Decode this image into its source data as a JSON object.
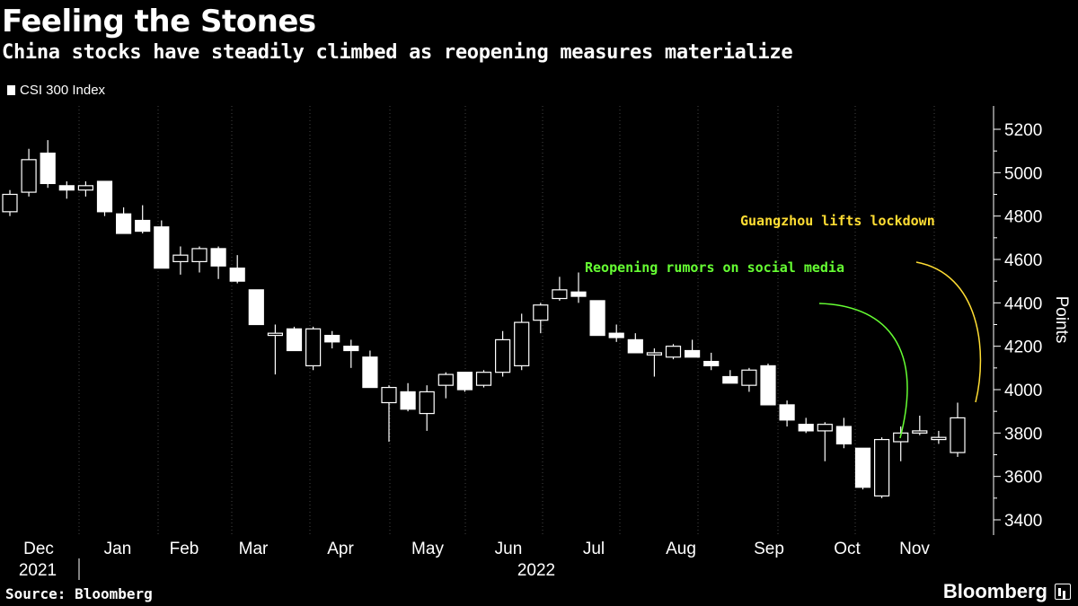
{
  "header": {
    "title": "Feeling the Stones",
    "subtitle": "China stocks have steadily climbed as reopening measures materialize"
  },
  "footer": {
    "source": "Source: Bloomberg",
    "brand": "Bloomberg"
  },
  "colors": {
    "background": "#000000",
    "candle": "#ffffff",
    "grid": "#444444",
    "annotation_green": "#66ff33",
    "annotation_yellow": "#ffdd33"
  },
  "chart_data": {
    "type": "candlestick",
    "title": "Feeling the Stones",
    "subtitle": "China stocks have steadily climbed as reopening measures materialize",
    "legend": [
      "CSI 300 Index"
    ],
    "legend_position": "top-left",
    "ylabel": "Points",
    "ylim": [
      3400,
      5200
    ],
    "yticks": [
      3400,
      3600,
      3800,
      4000,
      4200,
      4400,
      4600,
      4800,
      5000,
      5200
    ],
    "y_axis_side": "right",
    "grid": "vertical dotted",
    "x_month_labels": [
      "Dec",
      "Jan",
      "Feb",
      "Mar",
      "Apr",
      "May",
      "Jun",
      "Jul",
      "Aug",
      "Sep",
      "Oct",
      "Nov"
    ],
    "x_year_labels": [
      "2021",
      "2022"
    ],
    "series": [
      {
        "name": "CSI 300 Index",
        "ohlc": [
          {
            "week": "2021-11-29",
            "open": 4820,
            "high": 4920,
            "low": 4800,
            "close": 4900
          },
          {
            "week": "2021-12-06",
            "open": 4910,
            "high": 5110,
            "low": 4890,
            "close": 5060
          },
          {
            "week": "2021-12-13",
            "open": 5090,
            "high": 5150,
            "low": 4930,
            "close": 4950
          },
          {
            "week": "2021-12-20",
            "open": 4940,
            "high": 4960,
            "low": 4880,
            "close": 4920
          },
          {
            "week": "2021-12-27",
            "open": 4920,
            "high": 4960,
            "low": 4890,
            "close": 4940
          },
          {
            "week": "2022-01-03",
            "open": 4960,
            "high": 4960,
            "low": 4800,
            "close": 4820
          },
          {
            "week": "2022-01-10",
            "open": 4810,
            "high": 4840,
            "low": 4720,
            "close": 4720
          },
          {
            "week": "2022-01-17",
            "open": 4780,
            "high": 4850,
            "low": 4720,
            "close": 4730
          },
          {
            "week": "2022-01-24",
            "open": 4750,
            "high": 4780,
            "low": 4560,
            "close": 4560
          },
          {
            "week": "2022-02-07",
            "open": 4590,
            "high": 4660,
            "low": 4530,
            "close": 4620
          },
          {
            "week": "2022-02-14",
            "open": 4590,
            "high": 4660,
            "low": 4540,
            "close": 4650
          },
          {
            "week": "2022-02-21",
            "open": 4650,
            "high": 4660,
            "low": 4510,
            "close": 4570
          },
          {
            "week": "2022-02-28",
            "open": 4560,
            "high": 4620,
            "low": 4490,
            "close": 4500
          },
          {
            "week": "2022-03-07",
            "open": 4460,
            "high": 4460,
            "low": 4300,
            "close": 4300
          },
          {
            "week": "2022-03-14",
            "open": 4250,
            "high": 4300,
            "low": 4070,
            "close": 4260
          },
          {
            "week": "2022-03-21",
            "open": 4280,
            "high": 4290,
            "low": 4180,
            "close": 4180
          },
          {
            "week": "2022-03-28",
            "open": 4110,
            "high": 4290,
            "low": 4090,
            "close": 4280
          },
          {
            "week": "2022-04-04",
            "open": 4250,
            "high": 4270,
            "low": 4190,
            "close": 4220
          },
          {
            "week": "2022-04-11",
            "open": 4200,
            "high": 4230,
            "low": 4100,
            "close": 4180
          },
          {
            "week": "2022-04-18",
            "open": 4150,
            "high": 4180,
            "low": 4010,
            "close": 4010
          },
          {
            "week": "2022-04-25",
            "open": 3940,
            "high": 4020,
            "low": 3760,
            "close": 4010
          },
          {
            "week": "2022-05-02",
            "open": 3990,
            "high": 4030,
            "low": 3900,
            "close": 3910
          },
          {
            "week": "2022-05-09",
            "open": 3890,
            "high": 4020,
            "low": 3810,
            "close": 3990
          },
          {
            "week": "2022-05-16",
            "open": 4020,
            "high": 4080,
            "low": 3960,
            "close": 4070
          },
          {
            "week": "2022-05-23",
            "open": 4080,
            "high": 4080,
            "low": 3990,
            "close": 4000
          },
          {
            "week": "2022-05-30",
            "open": 4020,
            "high": 4090,
            "low": 4010,
            "close": 4080
          },
          {
            "week": "2022-06-06",
            "open": 4080,
            "high": 4270,
            "low": 4060,
            "close": 4230
          },
          {
            "week": "2022-06-13",
            "open": 4110,
            "high": 4350,
            "low": 4090,
            "close": 4310
          },
          {
            "week": "2022-06-20",
            "open": 4320,
            "high": 4400,
            "low": 4260,
            "close": 4390
          },
          {
            "week": "2022-06-27",
            "open": 4420,
            "high": 4520,
            "low": 4410,
            "close": 4460
          },
          {
            "week": "2022-07-04",
            "open": 4450,
            "high": 4540,
            "low": 4400,
            "close": 4430
          },
          {
            "week": "2022-07-11",
            "open": 4410,
            "high": 4410,
            "low": 4250,
            "close": 4250
          },
          {
            "week": "2022-07-18",
            "open": 4260,
            "high": 4300,
            "low": 4220,
            "close": 4240
          },
          {
            "week": "2022-07-25",
            "open": 4230,
            "high": 4260,
            "low": 4170,
            "close": 4170
          },
          {
            "week": "2022-08-01",
            "open": 4160,
            "high": 4190,
            "low": 4060,
            "close": 4170
          },
          {
            "week": "2022-08-08",
            "open": 4150,
            "high": 4210,
            "low": 4140,
            "close": 4200
          },
          {
            "week": "2022-08-15",
            "open": 4180,
            "high": 4230,
            "low": 4150,
            "close": 4150
          },
          {
            "week": "2022-08-22",
            "open": 4130,
            "high": 4170,
            "low": 4090,
            "close": 4110
          },
          {
            "week": "2022-08-29",
            "open": 4060,
            "high": 4090,
            "low": 4030,
            "close": 4030
          },
          {
            "week": "2022-09-05",
            "open": 4020,
            "high": 4100,
            "low": 3990,
            "close": 4090
          },
          {
            "week": "2022-09-12",
            "open": 4110,
            "high": 4120,
            "low": 3930,
            "close": 3930
          },
          {
            "week": "2022-09-19",
            "open": 3930,
            "high": 3950,
            "low": 3830,
            "close": 3860
          },
          {
            "week": "2022-09-26",
            "open": 3840,
            "high": 3870,
            "low": 3800,
            "close": 3810
          },
          {
            "week": "2022-10-10",
            "open": 3810,
            "high": 3850,
            "low": 3670,
            "close": 3840
          },
          {
            "week": "2022-10-17",
            "open": 3830,
            "high": 3870,
            "low": 3730,
            "close": 3750
          },
          {
            "week": "2022-10-24",
            "open": 3730,
            "high": 3730,
            "low": 3540,
            "close": 3550
          },
          {
            "week": "2022-10-31",
            "open": 3510,
            "high": 3780,
            "low": 3500,
            "close": 3770
          },
          {
            "week": "2022-11-07",
            "open": 3760,
            "high": 3830,
            "low": 3670,
            "close": 3800
          },
          {
            "week": "2022-11-14",
            "open": 3800,
            "high": 3880,
            "low": 3790,
            "close": 3810
          },
          {
            "week": "2022-11-21",
            "open": 3770,
            "high": 3810,
            "low": 3750,
            "close": 3780
          },
          {
            "week": "2022-11-28",
            "open": 3710,
            "high": 3940,
            "low": 3690,
            "close": 3870
          }
        ]
      }
    ],
    "annotations": [
      {
        "text": "Reopening rumors on social media",
        "color": "#66ff33"
      },
      {
        "text": "Guangzhou lifts lockdown",
        "color": "#ffdd33"
      }
    ]
  }
}
